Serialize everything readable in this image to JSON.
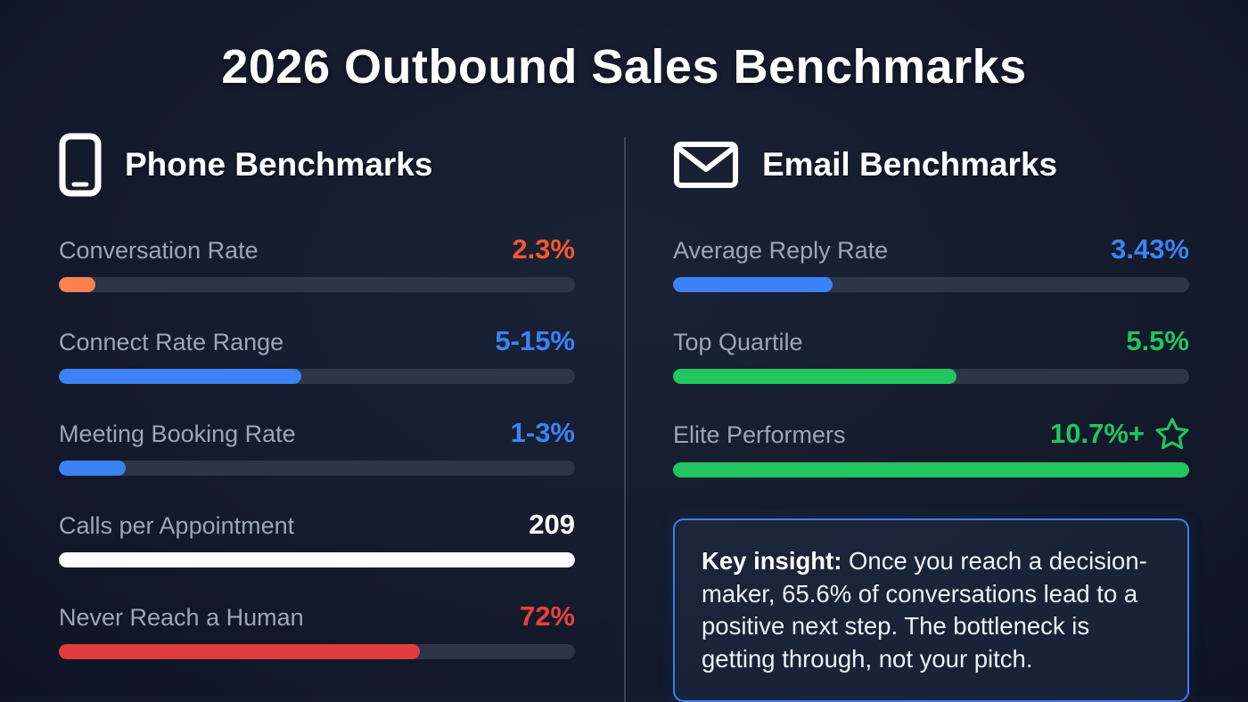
{
  "title": "2026 Outbound Sales Benchmarks",
  "colors": {
    "background": "#141b2d",
    "track": "#2c3549",
    "divider": "#39445a",
    "label_gray": "#9ba6ba",
    "orange": "#f8814e",
    "orange_text": "#f4582e",
    "blue": "#3b82f6",
    "green": "#22c55e",
    "red": "#e23d3d",
    "red_text": "#e8413f",
    "white": "#ffffff",
    "insight_border": "#3f7ef0"
  },
  "phone": {
    "heading": "Phone Benchmarks",
    "icon": "smartphone-icon",
    "rows": [
      {
        "label": "Conversation Rate",
        "value": "2.3%",
        "value_color": "#f4582e",
        "bar_color": "#f8814e",
        "fill_pct": 7
      },
      {
        "label": "Connect Rate Range",
        "value": "5-15%",
        "value_color": "#3b82f6",
        "bar_color": "#3b82f6",
        "fill_pct": 47
      },
      {
        "label": "Meeting Booking Rate",
        "value": "1-3%",
        "value_color": "#3b82f6",
        "bar_color": "#3b82f6",
        "fill_pct": 13
      },
      {
        "label": "Calls per Appointment",
        "value": "209",
        "value_color": "#ffffff",
        "bar_color": "#ffffff",
        "fill_pct": 100
      },
      {
        "label": "Never Reach a Human",
        "value": "72%",
        "value_color": "#e8413f",
        "bar_color": "#e23d3d",
        "fill_pct": 70
      }
    ]
  },
  "email": {
    "heading": "Email Benchmarks",
    "icon": "envelope-icon",
    "rows": [
      {
        "label": "Average Reply Rate",
        "value": "3.43%",
        "value_color": "#3b82f6",
        "bar_color": "#3b82f6",
        "fill_pct": 31
      },
      {
        "label": "Top Quartile",
        "value": "5.5%",
        "value_color": "#22c55e",
        "bar_color": "#22c55e",
        "fill_pct": 55
      },
      {
        "label": "Elite Performers",
        "value": "10.7%+",
        "value_color": "#22c55e",
        "bar_color": "#22c55e",
        "fill_pct": 100,
        "star": true
      }
    ],
    "insight": {
      "lead": "Key insight:",
      "text": " Once you reach a decision-maker, 65.6% of conversations lead to a positive next step. The bottleneck is getting through, not your pitch."
    }
  },
  "chart_data": [
    {
      "type": "bar",
      "title": "Phone Benchmarks",
      "categories": [
        "Conversation Rate",
        "Connect Rate Range",
        "Meeting Booking Rate",
        "Calls per Appointment",
        "Never Reach a Human"
      ],
      "values_text": [
        "2.3%",
        "5-15%",
        "1-3%",
        "209",
        "72%"
      ],
      "bar_fill_pct": [
        7,
        47,
        13,
        100,
        70
      ],
      "bar_colors": [
        "#f8814e",
        "#3b82f6",
        "#3b82f6",
        "#ffffff",
        "#e23d3d"
      ],
      "xlabel": "",
      "ylabel": "",
      "legend": "none",
      "grid": false
    },
    {
      "type": "bar",
      "title": "Email Benchmarks",
      "categories": [
        "Average Reply Rate",
        "Top Quartile",
        "Elite Performers"
      ],
      "values_text": [
        "3.43%",
        "5.5%",
        "10.7%+"
      ],
      "bar_fill_pct": [
        31,
        55,
        100
      ],
      "bar_colors": [
        "#3b82f6",
        "#22c55e",
        "#22c55e"
      ],
      "annotation": "Key insight: Once you reach a decision-maker, 65.6% of conversations lead to a positive next step. The bottleneck is getting through, not your pitch.",
      "xlabel": "",
      "ylabel": "",
      "legend": "none",
      "grid": false
    }
  ]
}
